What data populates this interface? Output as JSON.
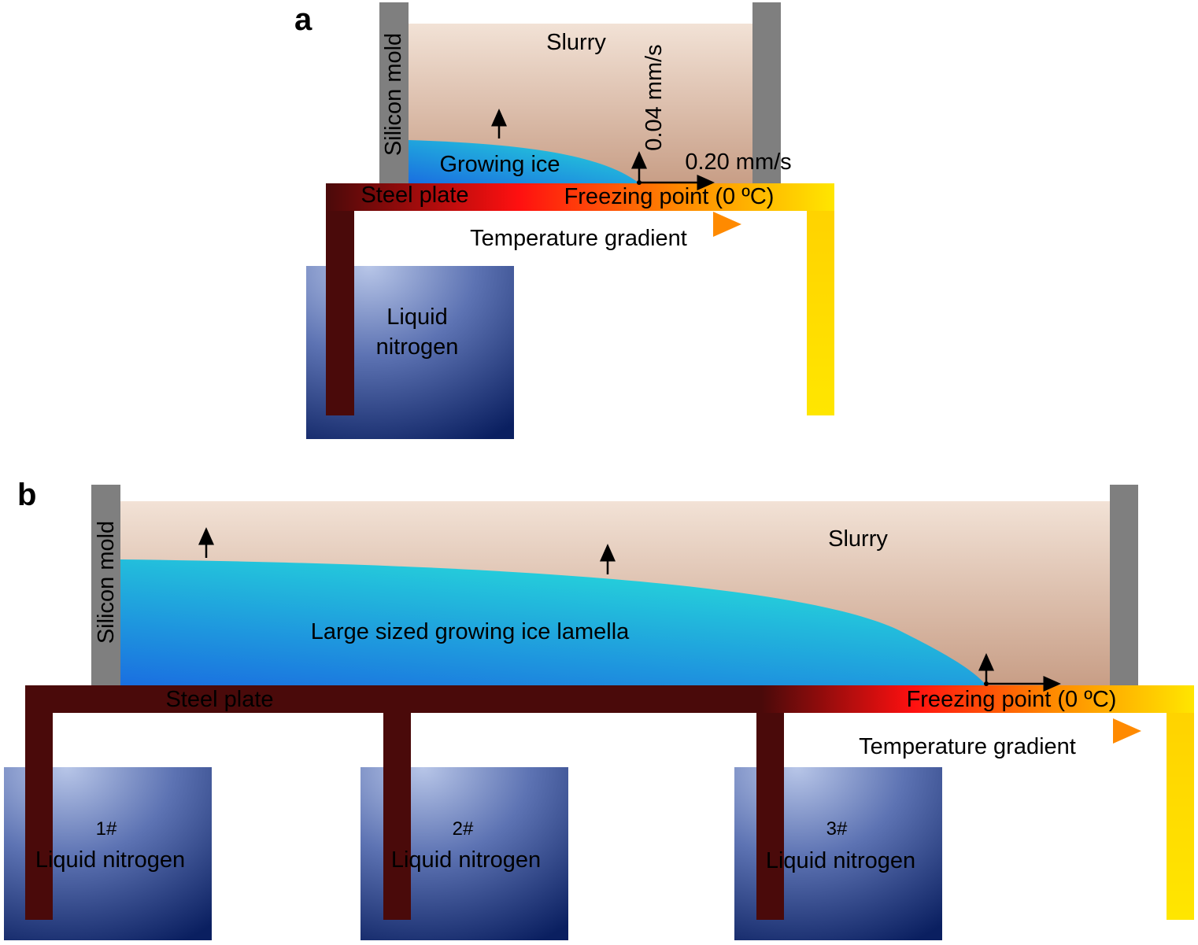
{
  "panel_a": {
    "letter": "a",
    "mold_label": "Silicon mold",
    "slurry_label": "Slurry",
    "ice_label": "Growing ice",
    "vertical_speed": "0.04 mm/s",
    "horizontal_speed": "0.20 mm/s",
    "plate_label": "Steel plate",
    "freezing_label": "Freezing point (0 ºC)",
    "gradient_label": "Temperature gradient",
    "nitrogen_line1": "Liquid",
    "nitrogen_line2": "nitrogen"
  },
  "panel_b": {
    "letter": "b",
    "mold_label": "Silicon mold",
    "slurry_label": "Slurry",
    "ice_label": "Large sized growing ice lamella",
    "plate_label": "Steel plate",
    "freezing_label": "Freezing point (0 ºC)",
    "gradient_label": "Temperature gradient",
    "tanks": [
      {
        "number": "1#",
        "label": "Liquid nitrogen"
      },
      {
        "number": "2#",
        "label": "Liquid nitrogen"
      },
      {
        "number": "3#",
        "label": "Liquid nitrogen"
      }
    ]
  },
  "colors": {
    "mold": "#7f7f7f",
    "steel_cold": "#4a0a0a",
    "steel_hot": "#ffe600",
    "ice_light": "#24d8d8",
    "ice_dark": "#1a6fe0",
    "slurry_top": "#f1e0d4",
    "slurry_bottom": "#c9a088",
    "nitrogen_light": "#b8c6e8",
    "nitrogen_dark": "#0a1f60"
  }
}
